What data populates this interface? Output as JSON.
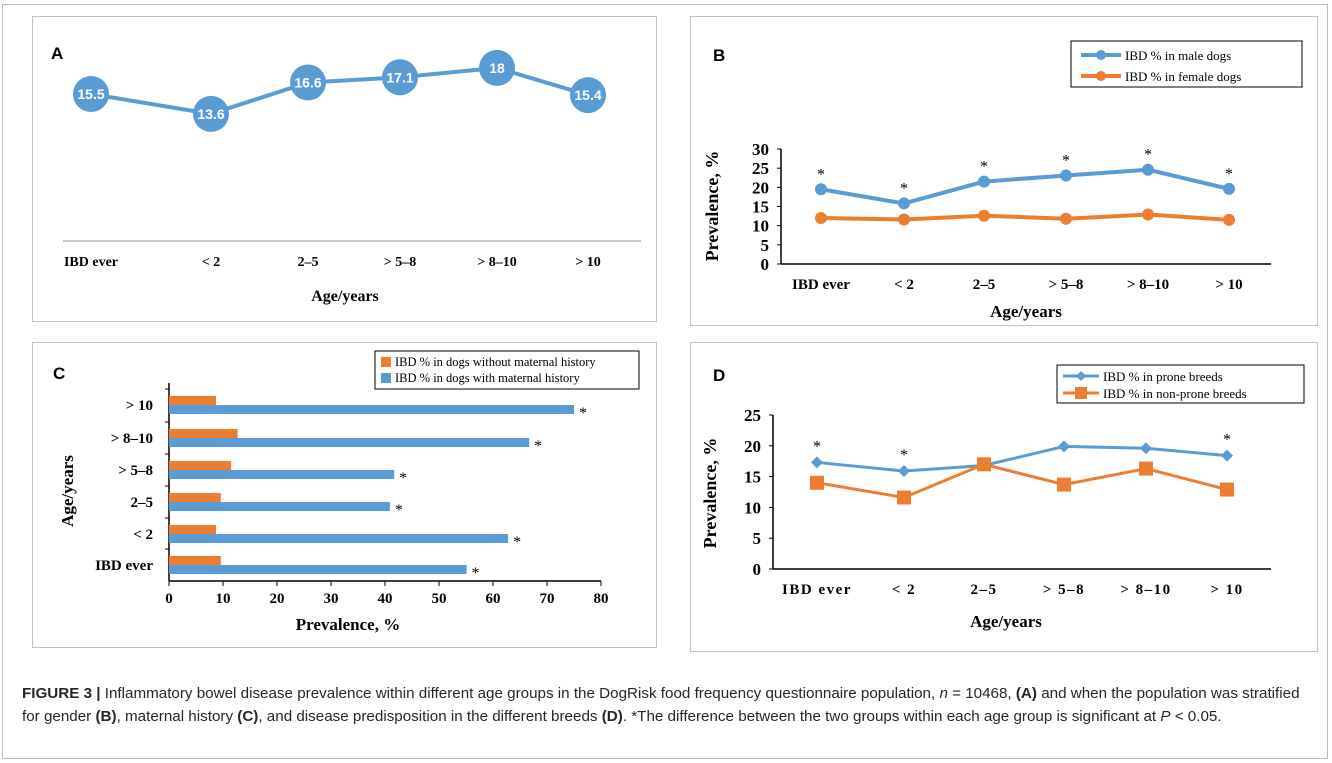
{
  "caption": {
    "figure_label": "FIGURE 3 |",
    "text_1": " Inflammatory bowel disease prevalence within different age groups in the DogRisk food frequency questionnaire population, ",
    "n_var": "n",
    "text_2": " = 10468, ",
    "ref_a": "(A)",
    "text_3": " and when the population was stratified for gender ",
    "ref_b": "(B)",
    "text_4": ", maternal history ",
    "ref_c": "(C)",
    "text_5": ", and disease predisposition in the different breeds ",
    "ref_d": "(D)",
    "text_6": ". *The difference between the two groups within each age group is significant at ",
    "p_var": "P",
    "text_7": " < 0.05."
  },
  "colors": {
    "blue": "#5b9bd5",
    "orange": "#ed7d31",
    "axis": "#8c8c8c",
    "text": "#000000"
  },
  "chart_data": [
    {
      "panel": "A",
      "type": "line",
      "categories": [
        "IBD ever",
        "< 2",
        "2–5",
        "> 5–8",
        "> 8–10",
        "> 10"
      ],
      "series": [
        {
          "values": [
            15.5,
            13.6,
            16.6,
            17.1,
            18,
            15.4
          ]
        }
      ],
      "data_labels": [
        "15.5",
        "13.6",
        "16.6",
        "17.1",
        "18",
        "15.4"
      ],
      "xlabel": "Age/years",
      "ylabel": "",
      "ylim": [
        0,
        21
      ],
      "grid": false
    },
    {
      "panel": "B",
      "type": "line",
      "categories": [
        "IBD ever",
        "< 2",
        "2–5",
        "> 5–8",
        "> 8–10",
        "> 10"
      ],
      "series": [
        {
          "name": "IBD % in male dogs",
          "values": [
            19.5,
            15.8,
            21.5,
            23.1,
            24.6,
            19.6
          ],
          "significant": [
            true,
            true,
            true,
            true,
            true,
            true
          ]
        },
        {
          "name": "IBD % in female dogs",
          "values": [
            12.0,
            11.6,
            12.6,
            11.8,
            12.9,
            11.5
          ]
        }
      ],
      "xlabel": "Age/years",
      "ylabel": "Prevalence, %",
      "ylim": [
        0,
        30
      ],
      "yticks": [
        "0",
        "5",
        "10",
        "15",
        "20",
        "25",
        "30"
      ],
      "legend": "top-right",
      "grid": false
    },
    {
      "panel": "C",
      "type": "bar",
      "orientation": "horizontal",
      "categories": [
        "> 10",
        "> 8–10",
        "> 5–8",
        "2–5",
        "< 2",
        "IBD ever"
      ],
      "series": [
        {
          "name": "IBD % in dogs without maternal history",
          "values": [
            8.7,
            12.7,
            11.5,
            9.6,
            8.7,
            9.6
          ]
        },
        {
          "name": "IBD % in dogs with maternal history",
          "values": [
            75,
            66.7,
            41.7,
            40.9,
            62.8,
            55.1
          ],
          "significant": [
            true,
            true,
            true,
            true,
            true,
            true
          ]
        }
      ],
      "xlabel": "Prevalence, %",
      "ylabel": "Age/years",
      "xlim": [
        0,
        80
      ],
      "xticks": [
        "0",
        "10",
        "20",
        "30",
        "40",
        "50",
        "60",
        "70",
        "80"
      ],
      "legend": "top-right",
      "grid": false
    },
    {
      "panel": "D",
      "type": "line",
      "categories": [
        "IBD ever",
        "< 2",
        "2–5",
        "> 5–8",
        "> 8–10",
        "> 10"
      ],
      "series": [
        {
          "name": "IBD % in prone breeds",
          "values": [
            17.3,
            15.9,
            16.8,
            19.9,
            19.6,
            18.4
          ],
          "significant": [
            true,
            true,
            false,
            false,
            false,
            true
          ]
        },
        {
          "name": "IBD % in non-prone breeds",
          "values": [
            14.0,
            11.6,
            17.0,
            13.7,
            16.3,
            12.9
          ]
        }
      ],
      "xlabel": "Age/years",
      "ylabel": "Prevalence, %",
      "ylim": [
        0,
        25
      ],
      "yticks": [
        "0",
        "5",
        "10",
        "15",
        "20",
        "25"
      ],
      "legend": "top-right",
      "grid": false
    }
  ],
  "panel_labels": [
    "A",
    "B",
    "C",
    "D"
  ],
  "marker": "*"
}
